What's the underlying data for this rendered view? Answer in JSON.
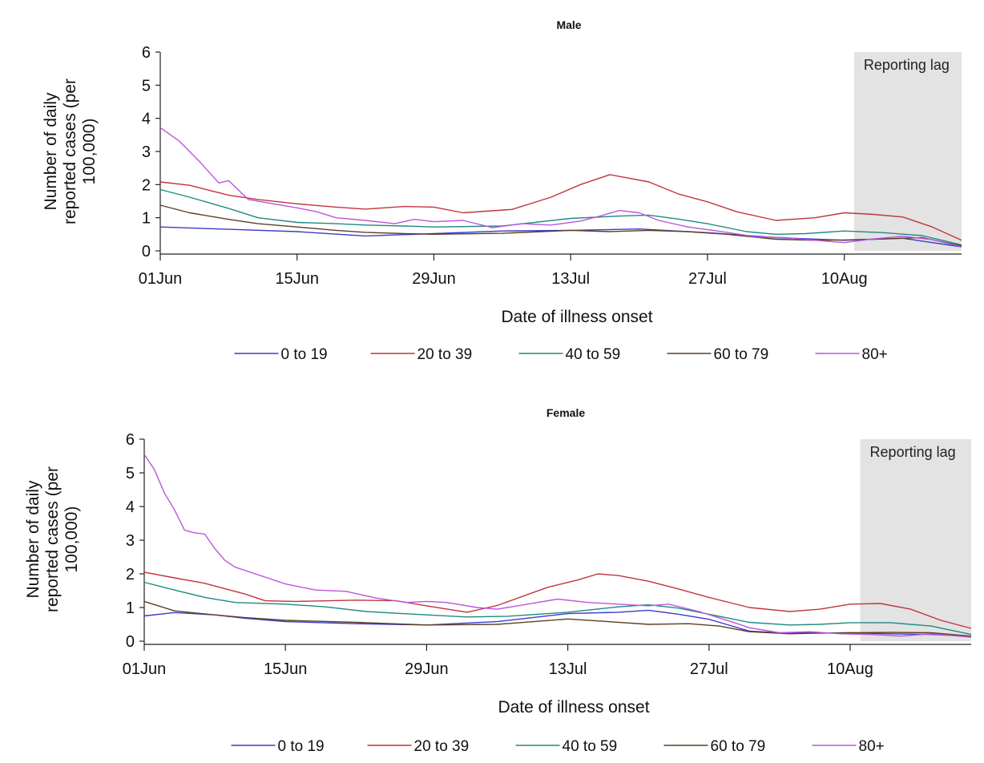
{
  "chart_data": [
    {
      "type": "line",
      "title": "Male",
      "xlabel": "Date of illness onset",
      "ylabel": "Number of daily reported cases (per 100,000)",
      "ylabel_lines": [
        "Number of daily",
        "reported cases (per",
        "100,000)"
      ],
      "ylim": [
        0,
        6
      ],
      "yticks": [
        0,
        1,
        2,
        3,
        4,
        5,
        6
      ],
      "x_ticks": [
        {
          "day": 0,
          "label": "01Jun"
        },
        {
          "day": 14,
          "label": "15Jun"
        },
        {
          "day": 28,
          "label": "29Jun"
        },
        {
          "day": 42,
          "label": "13Jul"
        },
        {
          "day": 56,
          "label": "27Jul"
        },
        {
          "day": 70,
          "label": "10Aug"
        }
      ],
      "x_range_days": [
        0,
        82
      ],
      "shaded_region": {
        "label": "Reporting lag",
        "start_day": 71,
        "end_day": 82
      },
      "legend_position": "bottom",
      "series": [
        {
          "name": "0 to 19",
          "color": "#3b3bcc",
          "points": [
            [
              0,
              0.72
            ],
            [
              7,
              0.65
            ],
            [
              14,
              0.58
            ],
            [
              21,
              0.45
            ],
            [
              28,
              0.52
            ],
            [
              35,
              0.6
            ],
            [
              42,
              0.62
            ],
            [
              49,
              0.66
            ],
            [
              56,
              0.55
            ],
            [
              63,
              0.4
            ],
            [
              70,
              0.32
            ],
            [
              76,
              0.38
            ],
            [
              82,
              0.12
            ]
          ]
        },
        {
          "name": "20 to 39",
          "color": "#c0353c",
          "points": [
            [
              0,
              2.08
            ],
            [
              3,
              1.98
            ],
            [
              7,
              1.68
            ],
            [
              10,
              1.55
            ],
            [
              14,
              1.42
            ],
            [
              18,
              1.32
            ],
            [
              21,
              1.26
            ],
            [
              25,
              1.34
            ],
            [
              28,
              1.32
            ],
            [
              31,
              1.15
            ],
            [
              36,
              1.25
            ],
            [
              40,
              1.62
            ],
            [
              43,
              2.0
            ],
            [
              46,
              2.3
            ],
            [
              50,
              2.08
            ],
            [
              53,
              1.72
            ],
            [
              56,
              1.48
            ],
            [
              59,
              1.18
            ],
            [
              63,
              0.92
            ],
            [
              67,
              1.0
            ],
            [
              70,
              1.15
            ],
            [
              73,
              1.1
            ],
            [
              76,
              1.02
            ],
            [
              79,
              0.72
            ],
            [
              82,
              0.32
            ]
          ]
        },
        {
          "name": "40 to 59",
          "color": "#1f8a80",
          "points": [
            [
              0,
              1.85
            ],
            [
              3,
              1.62
            ],
            [
              7,
              1.28
            ],
            [
              10,
              1.0
            ],
            [
              14,
              0.86
            ],
            [
              18,
              0.82
            ],
            [
              21,
              0.78
            ],
            [
              25,
              0.75
            ],
            [
              28,
              0.72
            ],
            [
              35,
              0.75
            ],
            [
              42,
              0.98
            ],
            [
              47,
              1.05
            ],
            [
              50,
              1.08
            ],
            [
              53,
              0.96
            ],
            [
              56,
              0.82
            ],
            [
              60,
              0.58
            ],
            [
              63,
              0.5
            ],
            [
              66,
              0.52
            ],
            [
              70,
              0.6
            ],
            [
              74,
              0.55
            ],
            [
              78,
              0.46
            ],
            [
              82,
              0.18
            ]
          ]
        },
        {
          "name": "60 to 79",
          "color": "#5a3f25",
          "points": [
            [
              0,
              1.38
            ],
            [
              3,
              1.15
            ],
            [
              7,
              0.95
            ],
            [
              10,
              0.82
            ],
            [
              14,
              0.72
            ],
            [
              18,
              0.62
            ],
            [
              21,
              0.56
            ],
            [
              25,
              0.52
            ],
            [
              28,
              0.5
            ],
            [
              35,
              0.53
            ],
            [
              42,
              0.62
            ],
            [
              46,
              0.58
            ],
            [
              50,
              0.62
            ],
            [
              54,
              0.58
            ],
            [
              58,
              0.5
            ],
            [
              63,
              0.35
            ],
            [
              67,
              0.32
            ],
            [
              70,
              0.33
            ],
            [
              74,
              0.36
            ],
            [
              78,
              0.4
            ],
            [
              82,
              0.15
            ]
          ]
        },
        {
          "name": "80+",
          "color": "#bb55dd",
          "points": [
            [
              0,
              3.72
            ],
            [
              2,
              3.3
            ],
            [
              4,
              2.7
            ],
            [
              6,
              2.05
            ],
            [
              7,
              2.12
            ],
            [
              9,
              1.55
            ],
            [
              11,
              1.45
            ],
            [
              14,
              1.3
            ],
            [
              16,
              1.18
            ],
            [
              18,
              1.0
            ],
            [
              21,
              0.92
            ],
            [
              24,
              0.82
            ],
            [
              26,
              0.95
            ],
            [
              28,
              0.88
            ],
            [
              31,
              0.92
            ],
            [
              34,
              0.7
            ],
            [
              37,
              0.82
            ],
            [
              40,
              0.78
            ],
            [
              43,
              0.9
            ],
            [
              45,
              1.05
            ],
            [
              47,
              1.22
            ],
            [
              49,
              1.15
            ],
            [
              51,
              0.92
            ],
            [
              54,
              0.72
            ],
            [
              57,
              0.6
            ],
            [
              61,
              0.42
            ],
            [
              64,
              0.4
            ],
            [
              67,
              0.32
            ],
            [
              70,
              0.25
            ],
            [
              73,
              0.36
            ],
            [
              76,
              0.44
            ],
            [
              79,
              0.34
            ],
            [
              82,
              0.12
            ]
          ]
        }
      ]
    },
    {
      "type": "line",
      "title": "Female",
      "xlabel": "Date of illness onset",
      "ylabel": "Number of daily reported cases (per 100,000)",
      "ylabel_lines": [
        "Number of daily",
        "reported cases (per",
        "100,000)"
      ],
      "ylim": [
        0,
        6
      ],
      "yticks": [
        0,
        1,
        2,
        3,
        4,
        5,
        6
      ],
      "x_ticks": [
        {
          "day": 0,
          "label": "01Jun"
        },
        {
          "day": 14,
          "label": "15Jun"
        },
        {
          "day": 28,
          "label": "29Jun"
        },
        {
          "day": 42,
          "label": "13Jul"
        },
        {
          "day": 56,
          "label": "27Jul"
        },
        {
          "day": 70,
          "label": "10Aug"
        }
      ],
      "x_range_days": [
        0,
        82
      ],
      "shaded_region": {
        "label": "Reporting lag",
        "start_day": 71,
        "end_day": 82
      },
      "legend_position": "bottom",
      "series": [
        {
          "name": "0 to 19",
          "color": "#3b3bcc",
          "points": [
            [
              0,
              0.75
            ],
            [
              3,
              0.85
            ],
            [
              7,
              0.78
            ],
            [
              10,
              0.68
            ],
            [
              14,
              0.58
            ],
            [
              21,
              0.52
            ],
            [
              28,
              0.48
            ],
            [
              35,
              0.58
            ],
            [
              42,
              0.82
            ],
            [
              47,
              0.86
            ],
            [
              50,
              0.92
            ],
            [
              53,
              0.8
            ],
            [
              56,
              0.65
            ],
            [
              60,
              0.3
            ],
            [
              63,
              0.25
            ],
            [
              67,
              0.24
            ],
            [
              70,
              0.25
            ],
            [
              74,
              0.22
            ],
            [
              78,
              0.2
            ],
            [
              82,
              0.14
            ]
          ]
        },
        {
          "name": "20 to 39",
          "color": "#c0353c",
          "points": [
            [
              0,
              2.05
            ],
            [
              3,
              1.88
            ],
            [
              6,
              1.72
            ],
            [
              10,
              1.4
            ],
            [
              12,
              1.2
            ],
            [
              15,
              1.18
            ],
            [
              21,
              1.22
            ],
            [
              25,
              1.2
            ],
            [
              28,
              1.05
            ],
            [
              32,
              0.86
            ],
            [
              35,
              1.06
            ],
            [
              40,
              1.6
            ],
            [
              43,
              1.82
            ],
            [
              45,
              2.0
            ],
            [
              47,
              1.95
            ],
            [
              50,
              1.78
            ],
            [
              53,
              1.55
            ],
            [
              56,
              1.3
            ],
            [
              60,
              1.0
            ],
            [
              64,
              0.88
            ],
            [
              67,
              0.95
            ],
            [
              70,
              1.1
            ],
            [
              73,
              1.12
            ],
            [
              76,
              0.95
            ],
            [
              79,
              0.62
            ],
            [
              82,
              0.38
            ]
          ]
        },
        {
          "name": "40 to 59",
          "color": "#1f8a80",
          "points": [
            [
              0,
              1.75
            ],
            [
              3,
              1.52
            ],
            [
              6,
              1.3
            ],
            [
              9,
              1.15
            ],
            [
              14,
              1.1
            ],
            [
              18,
              1.02
            ],
            [
              22,
              0.88
            ],
            [
              28,
              0.78
            ],
            [
              32,
              0.72
            ],
            [
              36,
              0.74
            ],
            [
              42,
              0.86
            ],
            [
              47,
              1.02
            ],
            [
              50,
              1.08
            ],
            [
              53,
              0.98
            ],
            [
              56,
              0.8
            ],
            [
              60,
              0.56
            ],
            [
              64,
              0.48
            ],
            [
              67,
              0.5
            ],
            [
              70,
              0.55
            ],
            [
              74,
              0.55
            ],
            [
              78,
              0.45
            ],
            [
              82,
              0.2
            ]
          ]
        },
        {
          "name": "60 to 79",
          "color": "#5a3f25",
          "points": [
            [
              0,
              1.18
            ],
            [
              3,
              0.9
            ],
            [
              7,
              0.78
            ],
            [
              10,
              0.7
            ],
            [
              14,
              0.62
            ],
            [
              21,
              0.56
            ],
            [
              28,
              0.48
            ],
            [
              35,
              0.5
            ],
            [
              42,
              0.66
            ],
            [
              46,
              0.58
            ],
            [
              50,
              0.5
            ],
            [
              54,
              0.52
            ],
            [
              57,
              0.45
            ],
            [
              60,
              0.28
            ],
            [
              64,
              0.22
            ],
            [
              67,
              0.24
            ],
            [
              70,
              0.25
            ],
            [
              74,
              0.26
            ],
            [
              78,
              0.25
            ],
            [
              82,
              0.15
            ]
          ]
        },
        {
          "name": "80+",
          "color": "#bb55dd",
          "points": [
            [
              0,
              5.55
            ],
            [
              1,
              5.1
            ],
            [
              2,
              4.4
            ],
            [
              3,
              3.9
            ],
            [
              4,
              3.3
            ],
            [
              5,
              3.22
            ],
            [
              6,
              3.18
            ],
            [
              7,
              2.75
            ],
            [
              8,
              2.4
            ],
            [
              9,
              2.2
            ],
            [
              11,
              2.0
            ],
            [
              14,
              1.7
            ],
            [
              17,
              1.52
            ],
            [
              20,
              1.48
            ],
            [
              23,
              1.28
            ],
            [
              26,
              1.15
            ],
            [
              28,
              1.18
            ],
            [
              30,
              1.15
            ],
            [
              33,
              1.0
            ],
            [
              35,
              0.95
            ],
            [
              38,
              1.1
            ],
            [
              41,
              1.25
            ],
            [
              44,
              1.15
            ],
            [
              47,
              1.1
            ],
            [
              50,
              1.05
            ],
            [
              52,
              1.1
            ],
            [
              55,
              0.88
            ],
            [
              58,
              0.6
            ],
            [
              60,
              0.4
            ],
            [
              63,
              0.25
            ],
            [
              66,
              0.28
            ],
            [
              69,
              0.22
            ],
            [
              72,
              0.2
            ],
            [
              75,
              0.15
            ],
            [
              78,
              0.22
            ],
            [
              82,
              0.12
            ]
          ]
        }
      ]
    }
  ]
}
